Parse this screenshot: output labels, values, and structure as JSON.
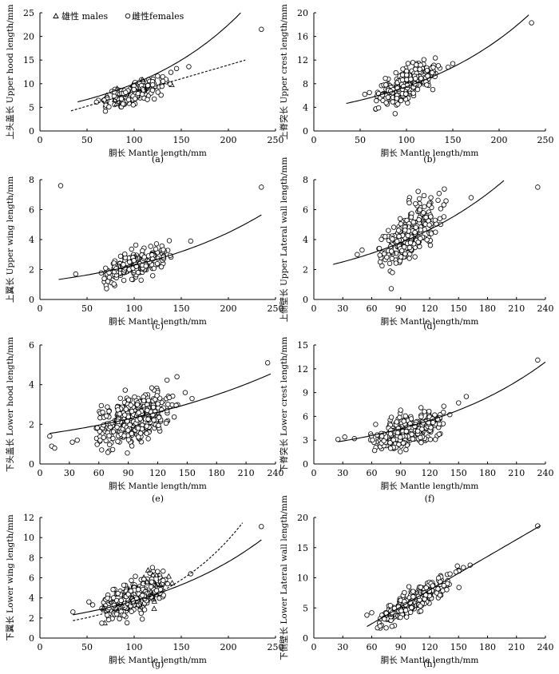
{
  "figure": {
    "x_label": "胴长 Mantle length/mm"
  },
  "legend": {
    "males_label": "雄性 males",
    "females_label": "雌性females"
  },
  "chart_data": [
    {
      "id": "a",
      "panel_label": "(a)",
      "type": "scatter",
      "ylabel": "上头盖长 Upper hood length/mm",
      "xlim": [
        0,
        250
      ],
      "ylim": [
        0,
        25
      ],
      "xticks": [
        "0",
        "50",
        "100",
        "150",
        "200",
        "250"
      ],
      "yticks": [
        "0",
        "5",
        "10",
        "15",
        "20",
        "25"
      ],
      "cluster": {
        "x_mean": 100,
        "x_sd": 16,
        "y_intercept": 1.2,
        "y_slope": 0.068,
        "y_sd": 1.1,
        "n": 220
      },
      "outliers": [
        [
          235,
          21.5
        ],
        [
          158,
          13.6
        ],
        [
          145,
          13.2
        ],
        [
          139,
          12.4
        ],
        [
          62,
          6.5
        ],
        [
          60,
          6.1
        ]
      ],
      "fit_solid": {
        "a": 4.45,
        "b": 0.0081,
        "x_range": [
          40,
          235
        ]
      },
      "fit_dashed": {
        "a": 2.35,
        "slope": 0.058,
        "x_range": [
          33,
          218
        ]
      }
    },
    {
      "id": "b",
      "panel_label": "(b)",
      "type": "scatter",
      "ylabel": "上脊突长 Upper crest length/mm",
      "xlim": [
        0,
        250
      ],
      "ylim": [
        0,
        20
      ],
      "xticks": [
        "0",
        "50",
        "100",
        "150",
        "200",
        "250"
      ],
      "yticks": [
        "0",
        "4",
        "8",
        "12",
        "16",
        "20"
      ],
      "cluster": {
        "x_mean": 100,
        "x_sd": 16,
        "y_intercept": -0.3,
        "y_slope": 0.082,
        "y_sd": 1.2,
        "n": 320
      },
      "outliers": [
        [
          235,
          18.3
        ],
        [
          150,
          11.4
        ],
        [
          145,
          10.8
        ],
        [
          60,
          6.5
        ],
        [
          55,
          6.2
        ]
      ],
      "fit_solid": {
        "a": 3.61,
        "b": 0.0073,
        "x_range": [
          35,
          232
        ]
      }
    },
    {
      "id": "c",
      "panel_label": "(c)",
      "type": "scatter",
      "ylabel": "上翼长 Upper wing length/mm",
      "xlim": [
        0,
        250
      ],
      "ylim": [
        0,
        8
      ],
      "xticks": [
        "0",
        "50",
        "100",
        "150",
        "200",
        "250"
      ],
      "yticks": [
        "0",
        "2",
        "4",
        "6",
        "8"
      ],
      "cluster": {
        "x_mean": 100,
        "x_sd": 16,
        "y_intercept": 0.3,
        "y_slope": 0.02,
        "y_sd": 0.4,
        "n": 300
      },
      "outliers": [
        [
          22,
          7.6
        ],
        [
          235,
          7.5
        ],
        [
          160,
          3.9
        ],
        [
          38,
          1.7
        ]
      ],
      "fit_solid": {
        "a": 1.17,
        "b": 0.0067,
        "x_range": [
          20,
          235
        ]
      }
    },
    {
      "id": "d",
      "panel_label": "(d)",
      "type": "scatter",
      "ylabel": "上侧壁长 Upper Lateral wall length/mm",
      "xlim": [
        0,
        240
      ],
      "ylim": [
        0,
        8
      ],
      "xticks": [
        "0",
        "30",
        "60",
        "90",
        "120",
        "150",
        "180",
        "210",
        "240"
      ],
      "yticks": [
        "0",
        "2",
        "4",
        "6",
        "8"
      ],
      "cluster": {
        "x_mean": 100,
        "x_sd": 15,
        "y_intercept": 0.0,
        "y_slope": 0.045,
        "y_sd": 0.8,
        "n": 320
      },
      "outliers": [
        [
          232,
          7.5
        ],
        [
          163,
          6.8
        ],
        [
          50,
          3.3
        ],
        [
          45,
          3.0
        ]
      ],
      "fit_solid": {
        "a": 2.04,
        "b": 0.0069,
        "x_range": [
          20,
          197
        ]
      }
    },
    {
      "id": "e",
      "panel_label": "(e)",
      "type": "scatter",
      "ylabel": "下头盖长 Lower hood length/mm",
      "xlim": [
        0,
        240
      ],
      "ylim": [
        0,
        6
      ],
      "xticks": [
        "0",
        "30",
        "60",
        "90",
        "120",
        "150",
        "180",
        "210",
        "240"
      ],
      "yticks": [
        "0",
        "2",
        "4",
        "6"
      ],
      "cluster": {
        "x_mean": 95,
        "x_sd": 18,
        "y_intercept": 0.9,
        "y_slope": 0.014,
        "y_sd": 0.55,
        "n": 420
      },
      "outliers": [
        [
          232,
          5.1
        ],
        [
          155,
          3.3
        ],
        [
          148,
          3.6
        ],
        [
          12,
          0.9
        ],
        [
          15,
          0.8
        ],
        [
          10,
          1.4
        ],
        [
          33,
          1.1
        ],
        [
          38,
          1.2
        ]
      ],
      "fit_solid": {
        "a": 1.47,
        "b": 0.0048,
        "x_range": [
          10,
          235
        ]
      }
    },
    {
      "id": "f",
      "panel_label": "(f)",
      "type": "scatter",
      "ylabel": "下脊突长 Lower crest length/mm",
      "xlim": [
        0,
        240
      ],
      "ylim": [
        0,
        15
      ],
      "xticks": [
        "0",
        "30",
        "60",
        "90",
        "120",
        "150",
        "180",
        "210",
        "240"
      ],
      "yticks": [
        "0",
        "3",
        "6",
        "9",
        "12",
        "15"
      ],
      "cluster": {
        "x_mean": 98,
        "x_sd": 17,
        "y_intercept": 0.6,
        "y_slope": 0.036,
        "y_sd": 0.9,
        "n": 400
      },
      "outliers": [
        [
          232,
          13.1
        ],
        [
          158,
          8.5
        ],
        [
          150,
          7.7
        ],
        [
          25,
          3.1
        ],
        [
          32,
          3.4
        ],
        [
          42,
          3.2
        ]
      ],
      "fit_solid": {
        "a": 2.34,
        "b": 0.0071,
        "x_range": [
          25,
          240
        ]
      }
    },
    {
      "id": "g",
      "panel_label": "(g)",
      "type": "scatter",
      "ylabel": "下翼长 Lower wing length/mm",
      "xlim": [
        0,
        250
      ],
      "ylim": [
        0,
        12
      ],
      "xticks": [
        "0",
        "50",
        "100",
        "150",
        "200",
        "250"
      ],
      "yticks": [
        "0",
        "2",
        "4",
        "6",
        "8",
        "10",
        "12"
      ],
      "cluster": {
        "x_mean": 100,
        "x_sd": 17,
        "y_intercept": -0.2,
        "y_slope": 0.043,
        "y_sd": 0.75,
        "n": 340
      },
      "outliers": [
        [
          235,
          11.1
        ],
        [
          160,
          6.4
        ],
        [
          35,
          2.6
        ],
        [
          52,
          3.6
        ],
        [
          56,
          3.3
        ]
      ],
      "fit_solid": {
        "a": 1.8,
        "b": 0.0072,
        "x_range": [
          35,
          235
        ]
      },
      "fit_dashed": {
        "a": 1.2,
        "b": 0.0105,
        "x_range": [
          35,
          215
        ]
      }
    },
    {
      "id": "h",
      "panel_label": "(h)",
      "type": "scatter",
      "ylabel": "下侧壁长 Lower Lateral wall length/mm",
      "xlim": [
        0,
        240
      ],
      "ylim": [
        0,
        20
      ],
      "xticks": [
        "0",
        "30",
        "60",
        "90",
        "120",
        "150",
        "180",
        "210",
        "240"
      ],
      "yticks": [
        "0",
        "5",
        "10",
        "15",
        "20"
      ],
      "cluster": {
        "x_mean": 105,
        "x_sd": 18,
        "y_intercept": -3.4,
        "y_slope": 0.092,
        "y_sd": 0.9,
        "n": 360
      },
      "outliers": [
        [
          232,
          18.6
        ],
        [
          162,
          12.1
        ],
        [
          155,
          11.7
        ],
        [
          60,
          4.2
        ],
        [
          55,
          3.8
        ]
      ],
      "fit_solid": {
        "a": -3.2,
        "slope": 0.093,
        "x_range": [
          55,
          235
        ]
      }
    }
  ]
}
